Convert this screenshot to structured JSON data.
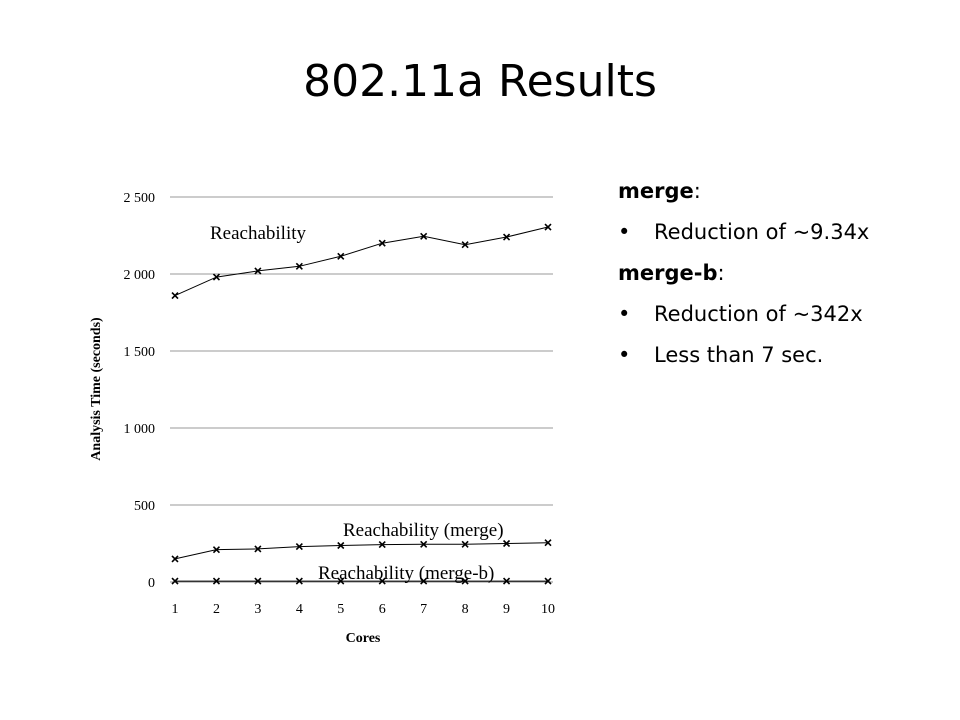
{
  "slide": {
    "title": "802.11a Results"
  },
  "notes": {
    "groups": [
      {
        "heading": "merge",
        "suffix": ":",
        "bullets": [
          "Reduction of ~9.34x"
        ]
      },
      {
        "heading": "merge-b",
        "suffix": ":",
        "bullets": [
          "Reduction of ~342x",
          "Less than 7 sec."
        ]
      }
    ]
  },
  "chart_data": {
    "type": "line",
    "title": "",
    "xlabel": "Cores",
    "ylabel": "Analysis Time (seconds)",
    "x": [
      1,
      2,
      3,
      4,
      5,
      6,
      7,
      8,
      9,
      10
    ],
    "x_tick_labels": [
      "1",
      "2",
      "3",
      "4",
      "5",
      "6",
      "7",
      "8",
      "9",
      "10"
    ],
    "ylim": [
      0,
      2500
    ],
    "y_ticks": [
      0,
      500,
      1000,
      1500,
      2000,
      2500
    ],
    "y_tick_labels": [
      "0",
      "500",
      "1 000",
      "1 500",
      "2 000",
      "2 500"
    ],
    "grid": "horizontal",
    "legend": "none",
    "marker": "x",
    "series": [
      {
        "name": "Reachability",
        "values": [
          1860,
          1980,
          2020,
          2050,
          2115,
          2200,
          2245,
          2190,
          2240,
          2305
        ]
      },
      {
        "name": "Reachability (merge)",
        "values": [
          150,
          210,
          215,
          230,
          237,
          243,
          245,
          245,
          250,
          255
        ]
      },
      {
        "name": "Reachability (merge-b)",
        "values": [
          6,
          6,
          6,
          6,
          6,
          6,
          6,
          6,
          6,
          6
        ]
      }
    ]
  }
}
